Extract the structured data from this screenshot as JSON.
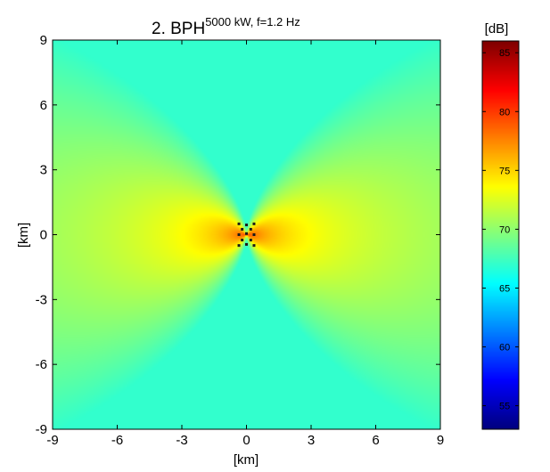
{
  "chart_data": {
    "type": "heatmap",
    "title": {
      "main": "2. BPH",
      "superscript": "5000 kW, f=1.2 Hz"
    },
    "xlabel": "[km]",
    "ylabel": "[km]",
    "xlim": [
      -9,
      9
    ],
    "ylim": [
      -9,
      9
    ],
    "xticks": [
      -9,
      -6,
      -3,
      0,
      3,
      6,
      9
    ],
    "yticks": [
      9,
      6,
      3,
      0,
      -3,
      -6,
      -9
    ],
    "colorbar": {
      "label": "[dB]",
      "range": [
        53,
        86
      ],
      "ticks": [
        85,
        80,
        75,
        70,
        65,
        60,
        55
      ],
      "colormap": "jet"
    },
    "field": {
      "description_values_dB": "radiation pattern, max near origin along x-axis, minimum along y-axis",
      "peak_dB": 82,
      "edge_along_y_dB": 67,
      "lobe_edge_dB": 70
    },
    "sources": {
      "x": [
        -0.35,
        0,
        0.35,
        -0.2,
        0.2,
        -0.35,
        0,
        0.35,
        -0.2,
        0.2,
        -0.35,
        0,
        0.35
      ],
      "y": [
        0.5,
        0.45,
        0.5,
        0.25,
        0.25,
        0.0,
        0.05,
        0.0,
        -0.25,
        -0.25,
        -0.5,
        -0.45,
        -0.5
      ]
    }
  }
}
